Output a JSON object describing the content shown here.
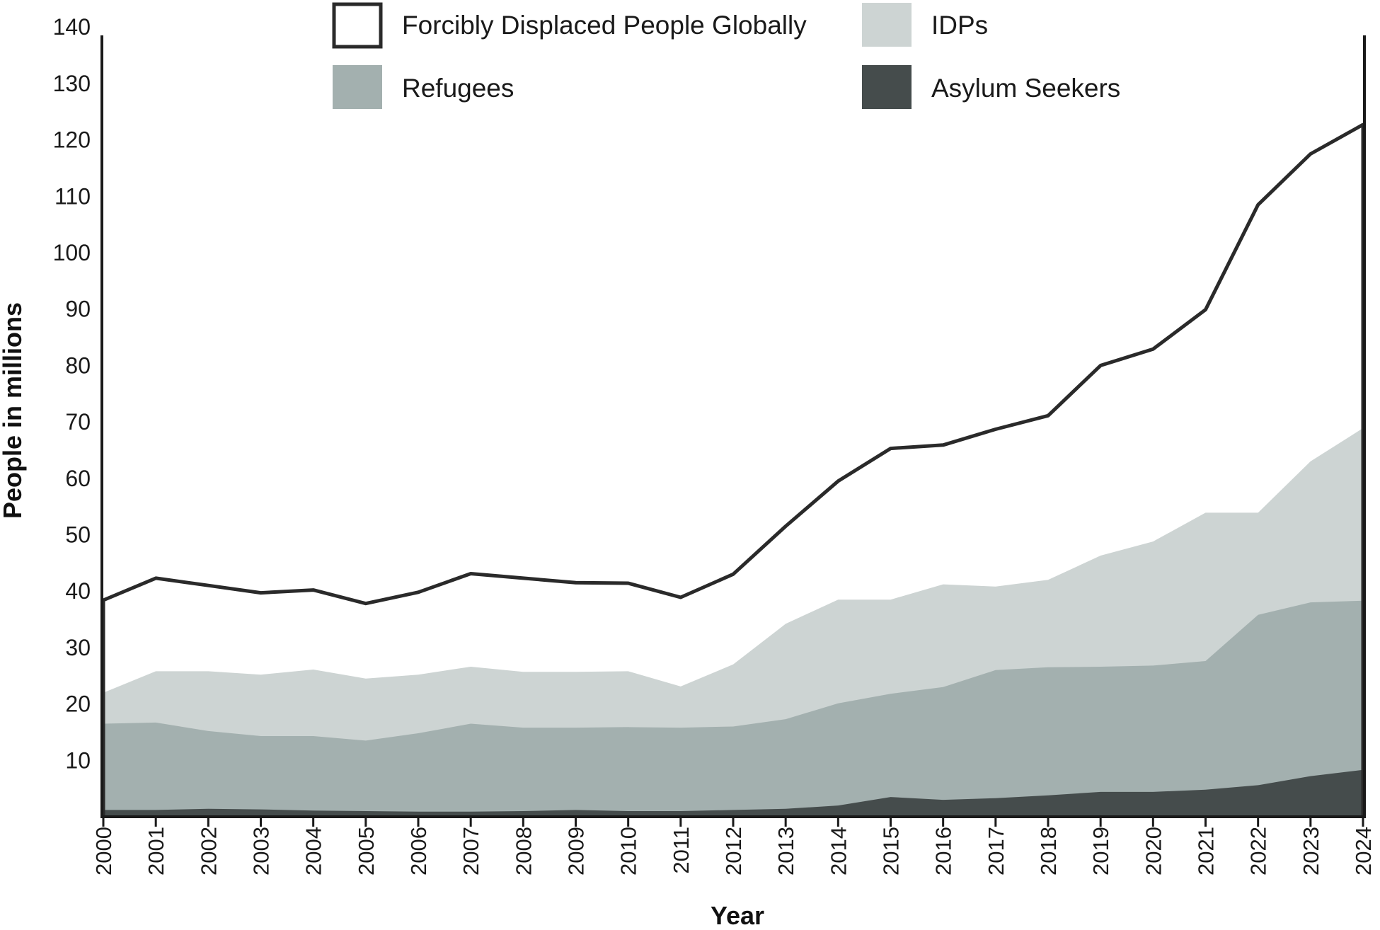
{
  "chart_data": {
    "type": "area",
    "xlabel": "Year",
    "ylabel": "People in millions",
    "ylim": [
      0,
      140
    ],
    "yticks": [
      10,
      20,
      30,
      40,
      50,
      60,
      70,
      80,
      90,
      100,
      110,
      120,
      130,
      140
    ],
    "x": [
      "2000",
      "2001",
      "2002",
      "2003",
      "2004",
      "2005",
      "2006",
      "2007",
      "2008",
      "2009",
      "2010",
      "2011",
      "2012",
      "2013",
      "2014",
      "2015",
      "2016",
      "2017",
      "2018",
      "2019",
      "2020",
      "2021",
      "2022",
      "2023",
      "2024"
    ],
    "legend": {
      "position": "top",
      "entries": [
        {
          "label": "Forcibly Displaced People Globally",
          "color": "#ffffff",
          "outline": "#2a2a2a"
        },
        {
          "label": "IDPs",
          "color": "#cdd4d3"
        },
        {
          "label": "Refugees",
          "color": "#a3b0af"
        },
        {
          "label": "Asylum Seekers",
          "color": "#454c4c"
        }
      ]
    },
    "series": [
      {
        "name": "Asylum Seekers",
        "color": "#454c4c",
        "values": [
          1.2,
          1.2,
          1.4,
          1.3,
          1.1,
          1.0,
          0.9,
          0.9,
          1.0,
          1.2,
          1.0,
          1.0,
          1.2,
          1.4,
          2.0,
          3.5,
          3.0,
          3.3,
          3.8,
          4.4,
          4.4,
          4.8,
          5.6,
          7.2,
          8.3
        ]
      },
      {
        "name": "Refugees",
        "color": "#a3b0af",
        "values": [
          16.5,
          16.7,
          15.2,
          14.3,
          14.3,
          13.5,
          14.8,
          16.5,
          15.8,
          15.8,
          15.9,
          15.8,
          16.0,
          17.3,
          20.1,
          21.8,
          23.0,
          26.0,
          26.5,
          26.6,
          26.8,
          27.6,
          35.8,
          38.0,
          38.3
        ]
      },
      {
        "name": "IDPs",
        "color": "#cdd4d3",
        "values": [
          22.0,
          25.8,
          25.8,
          25.2,
          26.1,
          24.5,
          25.2,
          26.6,
          25.7,
          25.7,
          25.8,
          23.1,
          27.0,
          34.2,
          38.5,
          38.5,
          41.2,
          40.8,
          42.0,
          46.3,
          48.8,
          53.9,
          53.9,
          63.0,
          68.9
        ]
      },
      {
        "name": "Forcibly Displaced People Globally",
        "color": "#ffffff",
        "line_color": "#2a2a2a",
        "values": [
          38.4,
          42.3,
          41.0,
          39.7,
          40.2,
          37.8,
          39.8,
          43.1,
          42.3,
          41.5,
          41.4,
          38.9,
          43.0,
          51.5,
          59.5,
          65.3,
          65.9,
          68.7,
          71.1,
          80.0,
          82.9,
          89.9,
          108.5,
          117.5,
          122.7
        ]
      }
    ]
  }
}
